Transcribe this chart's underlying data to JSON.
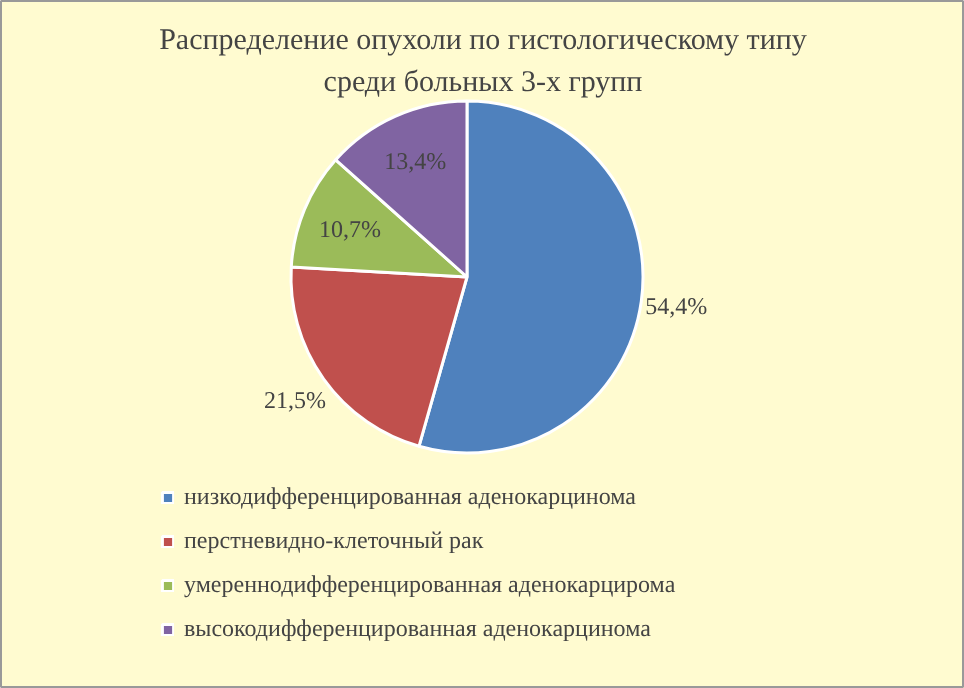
{
  "chart_data": {
    "type": "pie",
    "title": "Распределение опухоли по гистологическому типу\nсреди больных 3-х групп",
    "categories": [
      "низкодифференцированная аденокарцинома",
      "перстневидно-клеточный рак",
      "умереннодифференцированная аденокарцирома",
      "высокодифференцированная аденокарцинома"
    ],
    "values": [
      54.4,
      21.5,
      10.7,
      13.4
    ],
    "value_labels": [
      "54,4%",
      "21,5%",
      "10,7%",
      "13,4%"
    ],
    "colors": [
      "#4f81bd",
      "#c0504d",
      "#9bbb59",
      "#8064a2"
    ],
    "legend": "bottom"
  }
}
